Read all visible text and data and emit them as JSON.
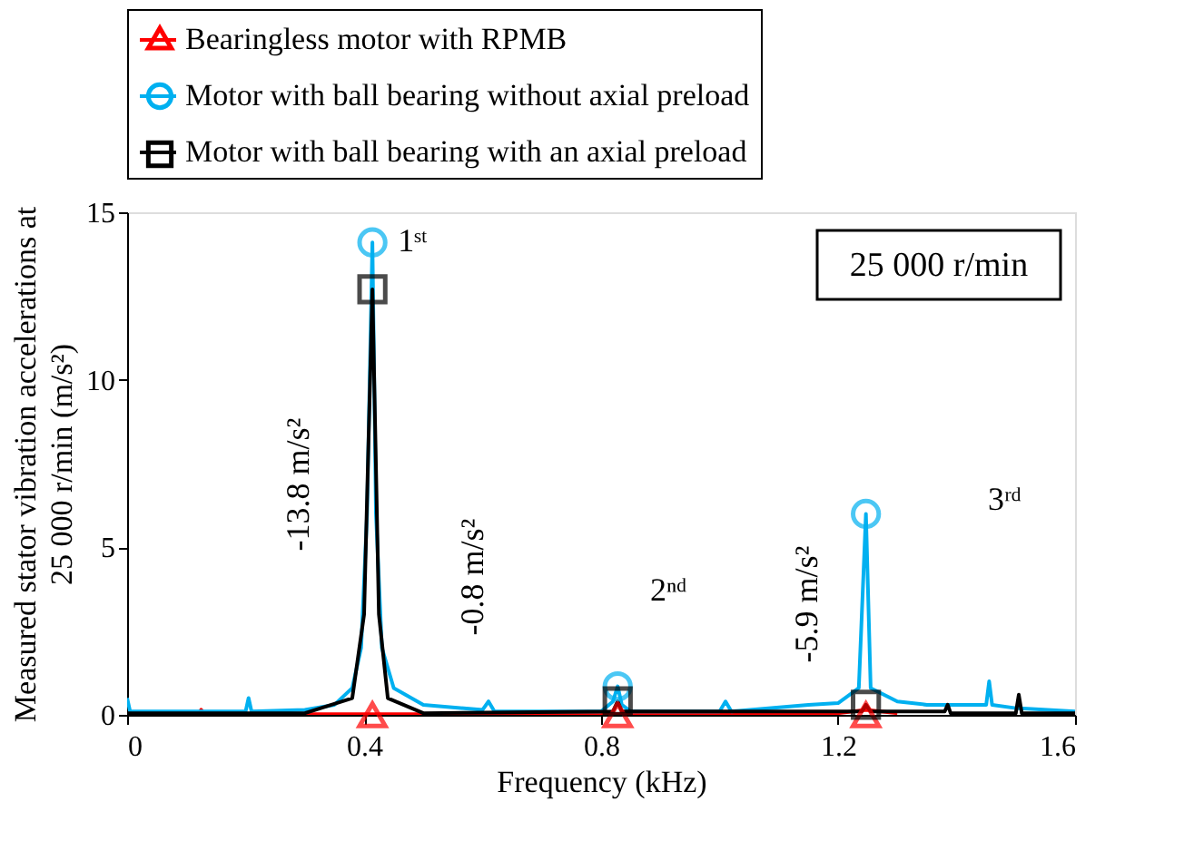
{
  "chart_data": {
    "type": "line",
    "xlabel": "Frequency (kHz)",
    "ylabel": "Measured stator vibration accelerations at 25 000 r/min (m/s²)",
    "xlim": [
      0,
      1.6
    ],
    "xticks": [
      0,
      0.4,
      0.8,
      1.2,
      1.6
    ],
    "ylim": [
      0,
      15
    ],
    "yticks": [
      0,
      5,
      10,
      15
    ],
    "grid": false,
    "legend": "top",
    "line_style": "solid",
    "series": [
      {
        "name": "Bearingless motor with RPMB",
        "color": "#ff0000",
        "marker": "none",
        "x": [
          0,
          0.12,
          0.125,
          0.13,
          0.8,
          1.2,
          1.247,
          1.3
        ],
        "values": [
          0.02,
          0.02,
          0.15,
          0.02,
          0.02,
          0.05,
          0.15,
          0.05
        ]
      },
      {
        "name": "Motor with ball bearing without axial preload",
        "color": "#00b0f0",
        "marker": "none",
        "x": [
          0,
          0.005,
          0.2,
          0.205,
          0.21,
          0.3,
          0.35,
          0.38,
          0.395,
          0.405,
          0.414,
          0.42,
          0.43,
          0.45,
          0.5,
          0.6,
          0.61,
          0.62,
          0.8,
          0.82,
          0.828,
          0.835,
          0.85,
          1.0,
          1.01,
          1.02,
          1.15,
          1.2,
          1.235,
          1.247,
          1.255,
          1.3,
          1.35,
          1.45,
          1.455,
          1.46,
          1.5,
          1.6
        ],
        "values": [
          0.5,
          0.1,
          0.1,
          0.5,
          0.1,
          0.15,
          0.3,
          0.8,
          2,
          6,
          14.1,
          6,
          2,
          0.8,
          0.3,
          0.15,
          0.4,
          0.1,
          0.1,
          0.4,
          0.85,
          0.3,
          0.1,
          0.1,
          0.4,
          0.1,
          0.3,
          0.35,
          0.8,
          6.0,
          0.8,
          0.4,
          0.3,
          0.3,
          1.0,
          0.3,
          0.2,
          0.1
        ]
      },
      {
        "name": "Motor with ball bearing with an axial preload",
        "color": "#000000",
        "marker": "none",
        "x": [
          0,
          0.3,
          0.38,
          0.4,
          0.414,
          0.425,
          0.44,
          0.5,
          0.82,
          0.828,
          0.835,
          1.24,
          1.247,
          1.255,
          1.38,
          1.385,
          1.39,
          1.5,
          1.505,
          1.51,
          1.6
        ],
        "values": [
          0.05,
          0.05,
          0.5,
          3,
          12.7,
          3,
          0.5,
          0.05,
          0.1,
          0.4,
          0.1,
          0.1,
          0.3,
          0.1,
          0.1,
          0.3,
          0.05,
          0.05,
          0.6,
          0.05,
          0.05
        ]
      },
      {
        "type": "scatter",
        "color": "#ff0000",
        "marker": "triangle",
        "x": [
          0.414,
          0.828,
          1.247
        ],
        "values": [
          0,
          0,
          0
        ]
      },
      {
        "type": "scatter",
        "color": "#00b0f0",
        "marker": "circle",
        "x": [
          0.414,
          0.828,
          1.247
        ],
        "values": [
          14.1,
          0.85,
          6.0
        ]
      },
      {
        "type": "scatter",
        "color": "#000000",
        "marker": "square",
        "x": [
          0.414,
          0.828,
          1.247
        ],
        "values": [
          12.7,
          0.4,
          0.3
        ]
      }
    ],
    "annotations": [
      {
        "text": "1ˢᵗ",
        "x": 0.414,
        "y": 14.1
      },
      "2ⁿᵈ",
      "3ʳᵈ",
      "25 000 r/min",
      "-13.8 m/s²",
      "-0.8 m/s²",
      "-5.9 m/s²"
    ]
  }
}
